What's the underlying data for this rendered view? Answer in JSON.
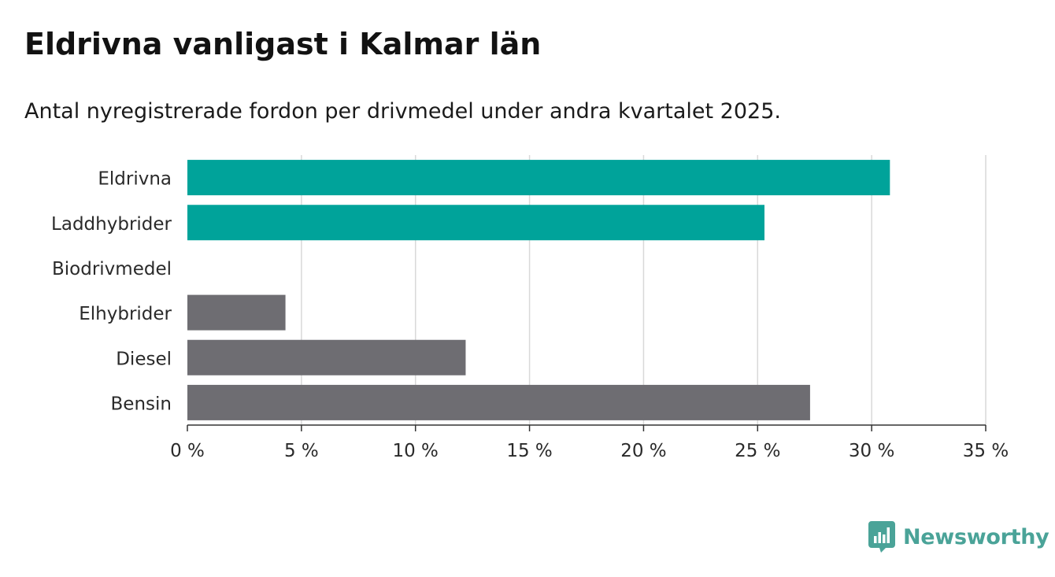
{
  "title": "Eldrivna vanligast i Kalmar län",
  "subtitle": "Antal nyregistrerade fordon per drivmedel under andra kvartalet 2025.",
  "brand": {
    "name": "Newsworthy",
    "icon": "newsworthy-logo-icon",
    "color": "#4aa398"
  },
  "colors": {
    "highlight": "#00a39a",
    "other": "#6e6d72",
    "grid": "#d9d9d9",
    "axis": "#333333"
  },
  "chart_data": {
    "type": "bar",
    "orientation": "horizontal",
    "categories": [
      "Eldrivna",
      "Laddhybrider",
      "Biodrivmedel",
      "Elhybrider",
      "Diesel",
      "Bensin"
    ],
    "values": [
      30.8,
      25.3,
      0,
      4.3,
      12.2,
      27.3
    ],
    "highlight": [
      true,
      true,
      true,
      false,
      false,
      false
    ],
    "unit": "%",
    "xlim": [
      0,
      35
    ],
    "xticks": [
      0,
      5,
      10,
      15,
      20,
      25,
      30,
      35
    ],
    "xtick_labels": [
      "0 %",
      "5 %",
      "10 %",
      "15 %",
      "20 %",
      "25 %",
      "30 %",
      "35 %"
    ],
    "grid": true,
    "legend": "none"
  }
}
